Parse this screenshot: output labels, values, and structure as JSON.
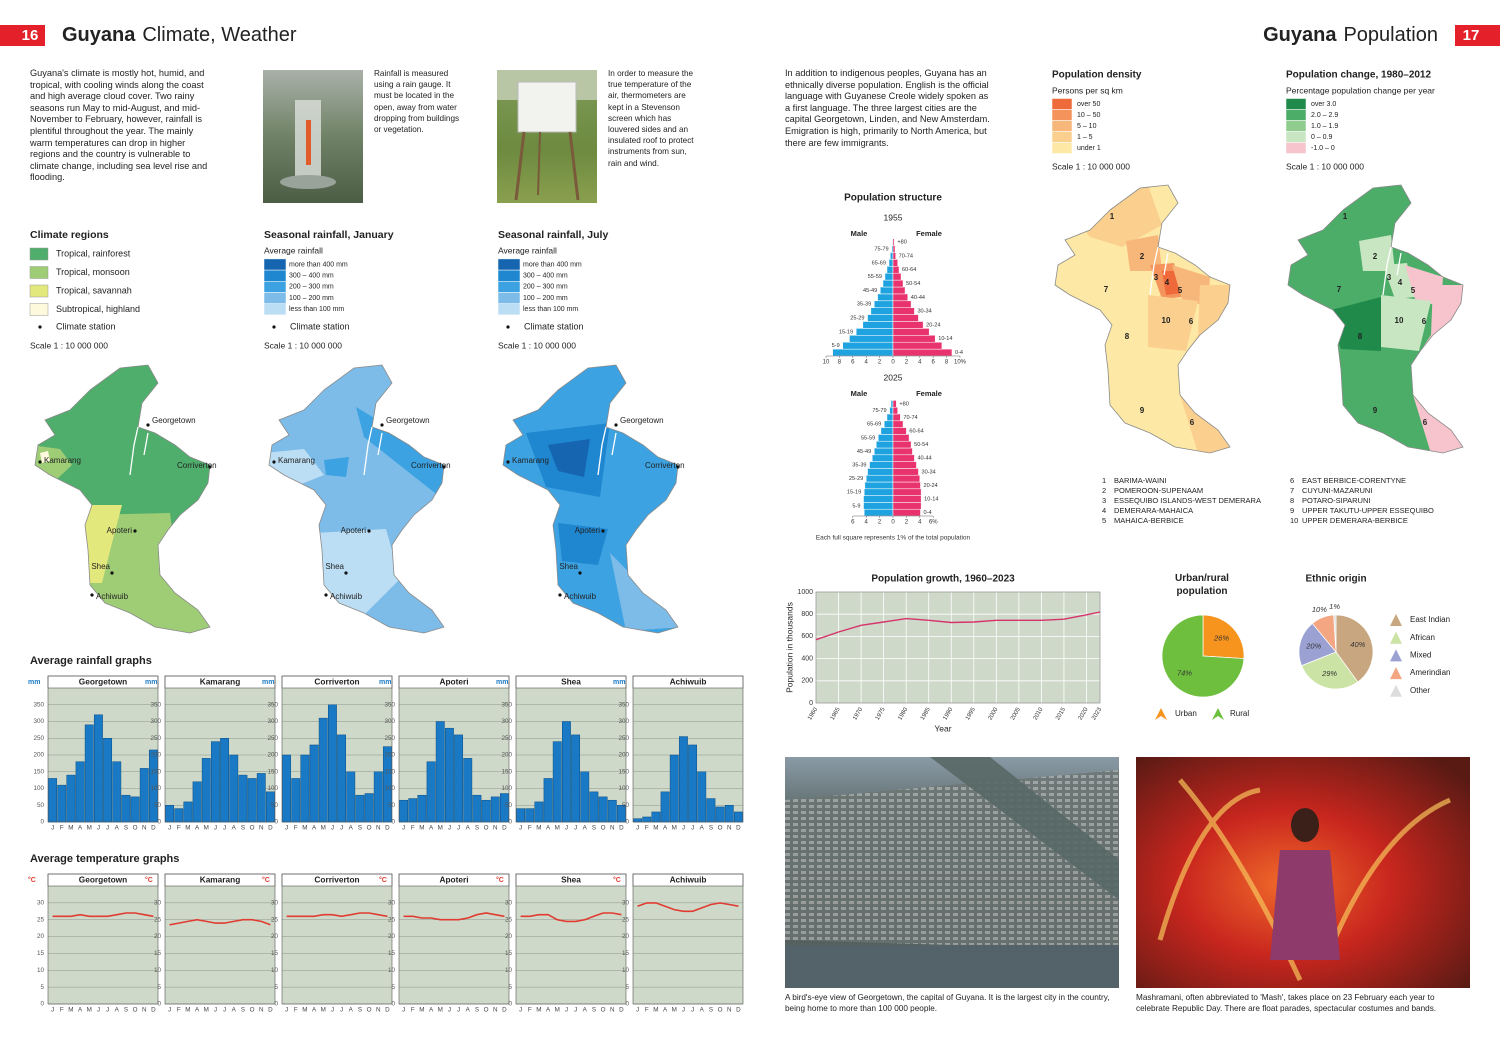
{
  "left_header": {
    "number": "16",
    "title_bold": "Guyana",
    "title": "Climate, Weather"
  },
  "right_header": {
    "number": "17",
    "title_bold": "Guyana",
    "title": "Population"
  },
  "left_intro": "Guyana's climate is mostly hot, humid, and tropical, with cooling winds along the coast and high average cloud cover. Two rainy seasons run May to mid-August, and mid-November to February, however, rainfall is plentiful throughout the year. The mainly warm temperatures can drop in higher regions and the country is vulnerable to climate change, including sea level rise and flooding.",
  "photo_captions": {
    "rain_gauge": "Rainfall is measured using a rain gauge. It must be located in the open, away from water dropping from buildings or vegetation.",
    "thermometer": "In order to measure the true temperature of the air, thermometers are kept in a Stevenson screen which has louvered sides and an insulated roof to protect instruments from sun, rain and wind.",
    "georgetown": "A bird's-eye view of Georgetown, the capital of Guyana. It is the largest city in the country, being home to more than 100 000 people.",
    "mashramani": "Mashramani, often abbreviated to 'Mash', takes place on 23 February each year to celebrate Republic Day. There are float parades, spectacular costumes and bands."
  },
  "places": [
    "Georgetown",
    "Kamarang",
    "Corriverton",
    "Apoteri",
    "Shea",
    "Achiwuib"
  ],
  "climate_map": {
    "title": "Climate regions",
    "legend": [
      {
        "label": "Tropical, rainforest",
        "color": "#4fae6b"
      },
      {
        "label": "Tropical, monsoon",
        "color": "#9fcd76"
      },
      {
        "label": "Tropical, savannah",
        "color": "#e3e87c"
      },
      {
        "label": "Subtropical, highland",
        "color": "#fdf9dc"
      }
    ],
    "station": "Climate station",
    "scale": "Scale 1 : 10 000 000"
  },
  "rain_jan": {
    "title": "Seasonal rainfall, January",
    "subtitle": "Average rainfall",
    "legend": [
      {
        "label": "more than 400 mm",
        "color": "#1565b0"
      },
      {
        "label": "300 – 400 mm",
        "color": "#1f86d0"
      },
      {
        "label": "200 – 300 mm",
        "color": "#3ca2e1"
      },
      {
        "label": "100 – 200 mm",
        "color": "#7dbce9"
      },
      {
        "label": "less than 100 mm",
        "color": "#bcdef4"
      }
    ],
    "station": "Climate station",
    "scale": "Scale 1 : 10 000 000"
  },
  "rain_jul": {
    "title": "Seasonal rainfall, July",
    "subtitle": "Average rainfall",
    "legend": [
      {
        "label": "more than 400 mm",
        "color": "#1565b0"
      },
      {
        "label": "300 – 400 mm",
        "color": "#1f86d0"
      },
      {
        "label": "200 – 300 mm",
        "color": "#3ca2e1"
      },
      {
        "label": "100 – 200 mm",
        "color": "#7dbce9"
      },
      {
        "label": "less than 100 mm",
        "color": "#bcdef4"
      }
    ],
    "station": "Climate station",
    "scale": "Scale 1 : 10 000 000"
  },
  "rainfall_graphs": {
    "type": "bar",
    "title": "Average rainfall graphs",
    "unit": "mm",
    "categories": [
      "J",
      "F",
      "M",
      "A",
      "M",
      "J",
      "J",
      "A",
      "S",
      "O",
      "N",
      "D"
    ],
    "ylim": [
      0,
      400
    ],
    "yticks": [
      0,
      50,
      100,
      150,
      200,
      250,
      300,
      350
    ],
    "color": "#1a79c4",
    "series": [
      {
        "name": "Georgetown",
        "values": [
          130,
          110,
          140,
          180,
          290,
          320,
          250,
          180,
          80,
          75,
          160,
          215
        ]
      },
      {
        "name": "Kamarang",
        "values": [
          50,
          40,
          60,
          120,
          190,
          240,
          250,
          200,
          140,
          130,
          145,
          90
        ]
      },
      {
        "name": "Corriverton",
        "values": [
          200,
          130,
          200,
          230,
          310,
          350,
          260,
          150,
          80,
          85,
          150,
          225
        ]
      },
      {
        "name": "Apoteri",
        "values": [
          65,
          70,
          80,
          180,
          300,
          280,
          260,
          190,
          80,
          65,
          75,
          85
        ]
      },
      {
        "name": "Shea",
        "values": [
          40,
          40,
          60,
          130,
          240,
          300,
          260,
          150,
          90,
          75,
          65,
          50
        ]
      },
      {
        "name": "Achiwuib",
        "values": [
          10,
          15,
          30,
          90,
          200,
          255,
          230,
          150,
          70,
          45,
          50,
          30
        ]
      }
    ]
  },
  "temperature_graphs": {
    "type": "line",
    "title": "Average temperature graphs",
    "unit": "°C",
    "categories": [
      "J",
      "F",
      "M",
      "A",
      "M",
      "J",
      "J",
      "A",
      "S",
      "O",
      "N",
      "D"
    ],
    "ylim": [
      0,
      35
    ],
    "yticks": [
      0,
      5,
      10,
      15,
      20,
      25,
      30
    ],
    "color": "#e03c31",
    "series": [
      {
        "name": "Georgetown",
        "values": [
          26,
          26,
          26,
          26.5,
          26,
          26,
          26,
          26.5,
          27,
          27,
          26.5,
          26
        ]
      },
      {
        "name": "Kamarang",
        "values": [
          23.5,
          24,
          24.5,
          25,
          24.5,
          24,
          24,
          24.5,
          25,
          25,
          24.5,
          23.5
        ]
      },
      {
        "name": "Corriverton",
        "values": [
          26,
          26,
          26,
          26,
          26.5,
          26.5,
          26,
          26.5,
          27,
          27,
          26.5,
          26
        ]
      },
      {
        "name": "Apoteri",
        "values": [
          26,
          26,
          25.5,
          25.5,
          25,
          25,
          25,
          25.5,
          26.5,
          27,
          26.5,
          26
        ]
      },
      {
        "name": "Shea",
        "values": [
          26,
          26,
          26.5,
          26.5,
          25,
          24.5,
          24.5,
          25,
          26,
          27,
          27,
          26.5
        ]
      },
      {
        "name": "Achiwuib",
        "values": [
          29,
          30,
          30,
          29,
          28,
          27.5,
          27.5,
          28.5,
          29.5,
          30,
          29.5,
          29
        ]
      }
    ]
  },
  "right_intro": "In addition to indigenous peoples, Guyana has an ethnically diverse population. English is the official language with Guyanese Creole widely spoken as a first language. The three largest cities are the capital Georgetown, Linden, and New Amsterdam. Emigration is high, primarily to North America, but there are few immigrants.",
  "density": {
    "title": "Population density",
    "subtitle": "Persons per sq km",
    "legend": [
      {
        "label": "over 50",
        "color": "#ef6a3a"
      },
      {
        "label": "10 – 50",
        "color": "#f4935c"
      },
      {
        "label": "5 – 10",
        "color": "#f8b77a"
      },
      {
        "label": "1 – 5",
        "color": "#fbd08f"
      },
      {
        "label": "under 1",
        "color": "#fde9a5"
      }
    ],
    "scale": "Scale 1 : 10 000 000"
  },
  "change": {
    "title": "Population change, 1980–2012",
    "subtitle": "Percentage population change per year",
    "legend": [
      {
        "label": "over 3.0",
        "color": "#1f8a4a"
      },
      {
        "label": "2.0 – 2.9",
        "color": "#4bad68"
      },
      {
        "label": "1.0 – 1.9",
        "color": "#8fcc8e"
      },
      {
        "label": "0 – 0.9",
        "color": "#c9e6c3"
      },
      {
        "label": "-1.0 – 0",
        "color": "#f7c3cc"
      }
    ],
    "scale": "Scale 1 : 10 000 000"
  },
  "districts": [
    {
      "number": "1",
      "name": "BARIMA-WAINI"
    },
    {
      "number": "2",
      "name": "POMEROON-SUPENAAM"
    },
    {
      "number": "3",
      "name": "ESSEQUIBO ISLANDS-WEST DEMERARA"
    },
    {
      "number": "4",
      "name": "DEMERARA-MAHAICA"
    },
    {
      "number": "5",
      "name": "MAHAICA-BERBICE"
    },
    {
      "number": "6",
      "name": "EAST BERBICE-CORENTYNE"
    },
    {
      "number": "7",
      "name": "CUYUNI-MAZARUNI"
    },
    {
      "number": "8",
      "name": "POTARO-SIPARUNI"
    },
    {
      "number": "9",
      "name": "UPPER TAKUTU-UPPER ESSEQUIBO"
    },
    {
      "number": "10",
      "name": "UPPER DEMERARA-BERBICE"
    }
  ],
  "population_structure": {
    "type": "pyramid",
    "title": "Population structure",
    "male": "Male",
    "female": "Female",
    "male_color": "#1fa3e0",
    "female_color": "#e8336f",
    "age_groups": [
      "0-4",
      "5-9",
      "10-14",
      "15-19",
      "20-24",
      "25-29",
      "30-34",
      "35-39",
      "40-44",
      "45-49",
      "50-54",
      "55-59",
      "60-64",
      "65-69",
      "70-74",
      "75-79",
      "+80"
    ],
    "pyramids": [
      {
        "year": "1955",
        "male": [
          9,
          7.5,
          6.5,
          5.5,
          4.5,
          3.8,
          3.3,
          2.8,
          2.3,
          1.9,
          1.5,
          1.2,
          0.9,
          0.6,
          0.4,
          0.2,
          0.1
        ],
        "female": [
          8.8,
          7.3,
          6.3,
          5.4,
          4.5,
          3.8,
          3.2,
          2.7,
          2.2,
          1.8,
          1.5,
          1.2,
          0.9,
          0.7,
          0.4,
          0.3,
          0.2
        ],
        "xlim": [
          -10,
          10
        ],
        "xticks": [
          {
            "value": -10,
            "label": "10"
          },
          {
            "value": -8,
            "label": "8"
          },
          {
            "value": -6,
            "label": "6"
          },
          {
            "value": -4,
            "label": "4"
          },
          {
            "value": -2,
            "label": "2"
          },
          0,
          2,
          4,
          6,
          8,
          {
            "value": 10,
            "label": "10%"
          }
        ]
      },
      {
        "year": "2025",
        "male": [
          4.3,
          4.4,
          4.4,
          4.3,
          4.2,
          4,
          3.8,
          3.5,
          3.1,
          2.8,
          2.5,
          2.2,
          1.8,
          1.3,
          0.9,
          0.5,
          0.3
        ],
        "female": [
          4.1,
          4.2,
          4.2,
          4.2,
          4.1,
          4,
          3.8,
          3.5,
          3.2,
          2.9,
          2.7,
          2.4,
          2,
          1.5,
          1.1,
          0.7,
          0.5
        ],
        "xlim": [
          -6,
          6
        ],
        "xticks": [
          {
            "value": -6,
            "label": "6"
          },
          {
            "value": -4,
            "label": "4"
          },
          {
            "value": -2,
            "label": "2"
          },
          0,
          2,
          4,
          {
            "value": 6,
            "label": "6%"
          }
        ]
      }
    ],
    "note": "Each full square represents 1% of the total population"
  },
  "growth": {
    "type": "line",
    "title": "Population growth, 1960–2023",
    "y_label": "Population in thousands",
    "x_label": "Year",
    "x": [
      1960,
      1965,
      1970,
      1975,
      1980,
      1985,
      1990,
      1995,
      2000,
      2005,
      2010,
      2015,
      2020,
      2023
    ],
    "values": [
      570,
      640,
      700,
      730,
      760,
      745,
      725,
      730,
      745,
      745,
      745,
      755,
      795,
      820
    ],
    "xlim": [
      1960,
      2023
    ],
    "xticks": [
      1960,
      1965,
      1970,
      1975,
      1980,
      1985,
      1990,
      1995,
      2000,
      2005,
      2010,
      2015,
      2020,
      2023
    ],
    "ylim": [
      0,
      1000
    ],
    "yticks": [
      0,
      200,
      400,
      600,
      800,
      1000
    ],
    "color": "#d6336c",
    "grid": true
  },
  "urban_rural": {
    "type": "pie",
    "title": "Urban/rural population",
    "categories": [
      "Urban",
      "Rural"
    ],
    "values": [
      26,
      74
    ],
    "value_labels": [
      "26%",
      "74%"
    ],
    "colors": [
      "#f7941d",
      "#6fbf3f"
    ]
  },
  "ethnic": {
    "type": "pie",
    "title": "Ethnic origin",
    "categories": [
      "East Indian",
      "African",
      "Mixed",
      "Amerindian",
      "Other"
    ],
    "values": [
      40,
      29,
      20,
      10,
      1
    ],
    "value_labels": [
      "40%",
      "29%",
      "20%",
      "10%",
      "1%"
    ],
    "colors": [
      "#c8a67f",
      "#cbe3a4",
      "#9ba2d3",
      "#f4a582",
      "#dddddd"
    ]
  }
}
